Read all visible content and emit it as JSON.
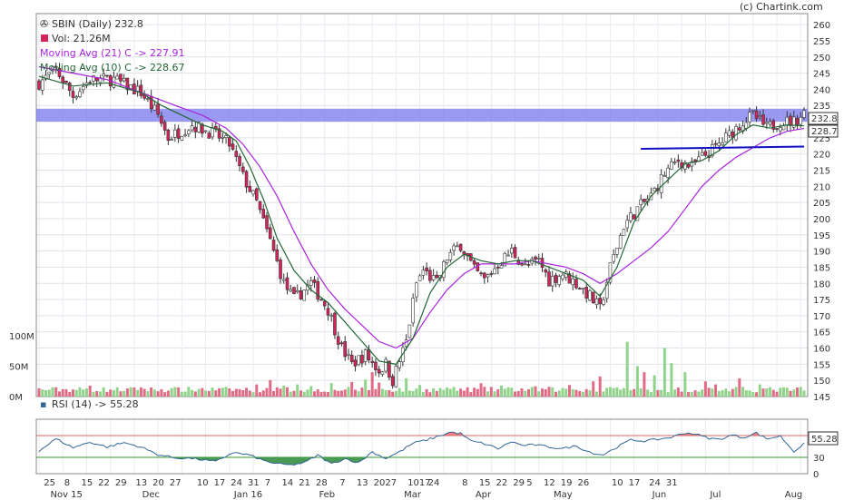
{
  "header": {
    "title": "SBIN (Daily) 232.8",
    "volume": "Vol: 21.26M",
    "ma21": "Moving Avg (21) C -> 227.91",
    "ma10": "Moving Avg (10) C -> 228.67",
    "credit": "(c) Chartink.com"
  },
  "colors": {
    "up": "#ffffff",
    "down": "#d6245a",
    "candle_outline": "#333333",
    "ma21": "#aa22dd",
    "ma10": "#226633",
    "band": "#7777ee",
    "trendline": "#1010c0",
    "vol_up": "#8fd48a",
    "vol_down": "#e06b86",
    "rsi_line": "#336699"
  },
  "chart_data": [
    {
      "type": "candlestick",
      "title": "SBIN (Daily) 232.8",
      "ylim": [
        145,
        262
      ],
      "yticks": [
        145,
        150,
        155,
        160,
        165,
        170,
        175,
        180,
        185,
        190,
        195,
        200,
        205,
        210,
        215,
        220,
        225,
        230,
        235,
        240,
        245,
        250,
        255,
        260
      ],
      "last_price_label": "232.8",
      "ma_label": "228.7",
      "anchors": [
        [
          0,
          242
        ],
        [
          5,
          246
        ],
        [
          10,
          238
        ],
        [
          15,
          243
        ],
        [
          22,
          243
        ],
        [
          30,
          239
        ],
        [
          35,
          232
        ],
        [
          38,
          225
        ],
        [
          45,
          229
        ],
        [
          52,
          226
        ],
        [
          56,
          223
        ],
        [
          60,
          213
        ],
        [
          64,
          205
        ],
        [
          68,
          193
        ],
        [
          72,
          180
        ],
        [
          75,
          175
        ],
        [
          80,
          180
        ],
        [
          85,
          172
        ],
        [
          89,
          160
        ],
        [
          92,
          155
        ],
        [
          96,
          158
        ],
        [
          100,
          153
        ],
        [
          102,
          155
        ],
        [
          104,
          150
        ],
        [
          108,
          162
        ],
        [
          111,
          180
        ],
        [
          113,
          184
        ],
        [
          117,
          180
        ],
        [
          120,
          188
        ],
        [
          124,
          192
        ],
        [
          128,
          184
        ],
        [
          131,
          181
        ],
        [
          135,
          186
        ],
        [
          139,
          190
        ],
        [
          143,
          185
        ],
        [
          147,
          187
        ],
        [
          150,
          181
        ],
        [
          154,
          183
        ],
        [
          158,
          180
        ],
        [
          162,
          176
        ],
        [
          165,
          172
        ],
        [
          168,
          185
        ],
        [
          172,
          198
        ],
        [
          176,
          203
        ],
        [
          180,
          207
        ],
        [
          184,
          214
        ],
        [
          188,
          218
        ],
        [
          192,
          216
        ],
        [
          195,
          219
        ],
        [
          199,
          222
        ],
        [
          203,
          226
        ],
        [
          207,
          230
        ],
        [
          210,
          232
        ],
        [
          214,
          228
        ],
        [
          218,
          230
        ],
        [
          222,
          230
        ],
        [
          225,
          232.8
        ]
      ],
      "ma21": [
        [
          0,
          247
        ],
        [
          10,
          245
        ],
        [
          20,
          243
        ],
        [
          30,
          239
        ],
        [
          40,
          235
        ],
        [
          48,
          232
        ],
        [
          55,
          228
        ],
        [
          60,
          223
        ],
        [
          65,
          216
        ],
        [
          70,
          207
        ],
        [
          75,
          196
        ],
        [
          80,
          186
        ],
        [
          85,
          178
        ],
        [
          90,
          172
        ],
        [
          95,
          167
        ],
        [
          100,
          162
        ],
        [
          105,
          160
        ],
        [
          110,
          163
        ],
        [
          115,
          171
        ],
        [
          120,
          178
        ],
        [
          125,
          183
        ],
        [
          130,
          186
        ],
        [
          135,
          186
        ],
        [
          140,
          186
        ],
        [
          145,
          187
        ],
        [
          150,
          186
        ],
        [
          155,
          185
        ],
        [
          160,
          183
        ],
        [
          165,
          180
        ],
        [
          170,
          183
        ],
        [
          175,
          187
        ],
        [
          180,
          191
        ],
        [
          185,
          196
        ],
        [
          190,
          203
        ],
        [
          195,
          210
        ],
        [
          200,
          215
        ],
        [
          205,
          219
        ],
        [
          210,
          222
        ],
        [
          215,
          225
        ],
        [
          220,
          227
        ],
        [
          225,
          227.9
        ]
      ],
      "ma10": [
        [
          0,
          244
        ],
        [
          10,
          241
        ],
        [
          20,
          242
        ],
        [
          30,
          239
        ],
        [
          36,
          235
        ],
        [
          42,
          232
        ],
        [
          48,
          229
        ],
        [
          54,
          227
        ],
        [
          58,
          224
        ],
        [
          62,
          216
        ],
        [
          66,
          206
        ],
        [
          70,
          194
        ],
        [
          75,
          184
        ],
        [
          80,
          178
        ],
        [
          85,
          174
        ],
        [
          90,
          168
        ],
        [
          95,
          162
        ],
        [
          100,
          156
        ],
        [
          105,
          155
        ],
        [
          110,
          163
        ],
        [
          115,
          177
        ],
        [
          120,
          185
        ],
        [
          125,
          189
        ],
        [
          130,
          187
        ],
        [
          135,
          186
        ],
        [
          140,
          187
        ],
        [
          145,
          187
        ],
        [
          150,
          185
        ],
        [
          155,
          183
        ],
        [
          160,
          181
        ],
        [
          165,
          176
        ],
        [
          170,
          185
        ],
        [
          175,
          199
        ],
        [
          180,
          207
        ],
        [
          185,
          212
        ],
        [
          190,
          217
        ],
        [
          195,
          218
        ],
        [
          200,
          221
        ],
        [
          205,
          226
        ],
        [
          210,
          229
        ],
        [
          215,
          228
        ],
        [
          220,
          229
        ],
        [
          225,
          228.7
        ]
      ],
      "band": [
        230,
        234
      ],
      "trendline": {
        "from": [
          177,
          221.6
        ],
        "to": [
          225,
          222.3
        ]
      }
    },
    {
      "type": "bar",
      "name": "Volume",
      "ylim": [
        0,
        130
      ],
      "yticks": [
        {
          "v": 0,
          "label": "0M"
        },
        {
          "v": 50,
          "label": "50M"
        },
        {
          "v": 100,
          "label": "100M"
        }
      ],
      "spikes": [
        [
          15,
          18
        ],
        [
          30,
          15
        ],
        [
          48,
          14
        ],
        [
          64,
          20
        ],
        [
          68,
          27
        ],
        [
          72,
          18
        ],
        [
          76,
          20
        ],
        [
          80,
          17
        ],
        [
          86,
          22
        ],
        [
          92,
          24
        ],
        [
          96,
          28
        ],
        [
          98,
          40
        ],
        [
          100,
          23
        ],
        [
          108,
          30
        ],
        [
          112,
          19
        ],
        [
          120,
          15
        ],
        [
          130,
          22
        ],
        [
          136,
          18
        ],
        [
          146,
          17
        ],
        [
          150,
          16
        ],
        [
          156,
          19
        ],
        [
          163,
          25
        ],
        [
          165,
          33
        ],
        [
          170,
          15
        ],
        [
          173,
          90
        ],
        [
          176,
          50
        ],
        [
          178,
          40
        ],
        [
          181,
          35
        ],
        [
          184,
          80
        ],
        [
          186,
          55
        ],
        [
          190,
          40
        ],
        [
          196,
          25
        ],
        [
          199,
          20
        ],
        [
          206,
          30
        ],
        [
          212,
          20
        ]
      ]
    },
    {
      "type": "line",
      "name": "RSI (14)",
      "label": "RSI (14) -> 55.28",
      "ylim": [
        0,
        100
      ],
      "yticks": [
        0,
        30,
        70
      ],
      "levels": [
        30,
        70
      ],
      "last": "55.28",
      "anchors": [
        [
          0,
          42
        ],
        [
          5,
          64
        ],
        [
          10,
          48
        ],
        [
          15,
          58
        ],
        [
          20,
          49
        ],
        [
          25,
          57
        ],
        [
          30,
          49
        ],
        [
          35,
          35
        ],
        [
          40,
          29
        ],
        [
          45,
          28
        ],
        [
          52,
          22
        ],
        [
          57,
          39
        ],
        [
          62,
          34
        ],
        [
          66,
          24
        ],
        [
          70,
          18
        ],
        [
          74,
          16
        ],
        [
          78,
          20
        ],
        [
          82,
          34
        ],
        [
          86,
          18
        ],
        [
          90,
          28
        ],
        [
          94,
          20
        ],
        [
          98,
          40
        ],
        [
          102,
          28
        ],
        [
          106,
          40
        ],
        [
          110,
          56
        ],
        [
          114,
          62
        ],
        [
          118,
          70
        ],
        [
          121,
          76
        ],
        [
          124,
          74
        ],
        [
          127,
          60
        ],
        [
          131,
          55
        ],
        [
          135,
          46
        ],
        [
          139,
          59
        ],
        [
          142,
          52
        ],
        [
          146,
          53
        ],
        [
          150,
          49
        ],
        [
          154,
          46
        ],
        [
          158,
          51
        ],
        [
          161,
          42
        ],
        [
          164,
          36
        ],
        [
          166,
          35
        ],
        [
          170,
          49
        ],
        [
          174,
          62
        ],
        [
          178,
          60
        ],
        [
          182,
          63
        ],
        [
          186,
          67
        ],
        [
          190,
          75
        ],
        [
          193,
          73
        ],
        [
          197,
          65
        ],
        [
          200,
          63
        ],
        [
          204,
          71
        ],
        [
          207,
          66
        ],
        [
          211,
          75
        ],
        [
          214,
          64
        ],
        [
          218,
          69
        ],
        [
          222,
          41
        ],
        [
          225,
          55
        ]
      ]
    }
  ],
  "x_axis": {
    "days": [
      "25",
      "8",
      "15",
      "22",
      "29",
      "13",
      "20",
      "27",
      "10",
      "17",
      "24",
      "31",
      "7",
      "14",
      "21",
      "28",
      "7",
      "13",
      "2027",
      "1017",
      "24",
      "8",
      "15",
      "22",
      "29",
      "5",
      "12",
      "19",
      "26",
      "10",
      "17",
      "24",
      "31"
    ],
    "months": [
      "Nov 15",
      "Dec",
      "Jan 16",
      "Feb",
      "Mar",
      "Apr",
      "May",
      "Jun",
      "Jul",
      "Aug"
    ]
  }
}
